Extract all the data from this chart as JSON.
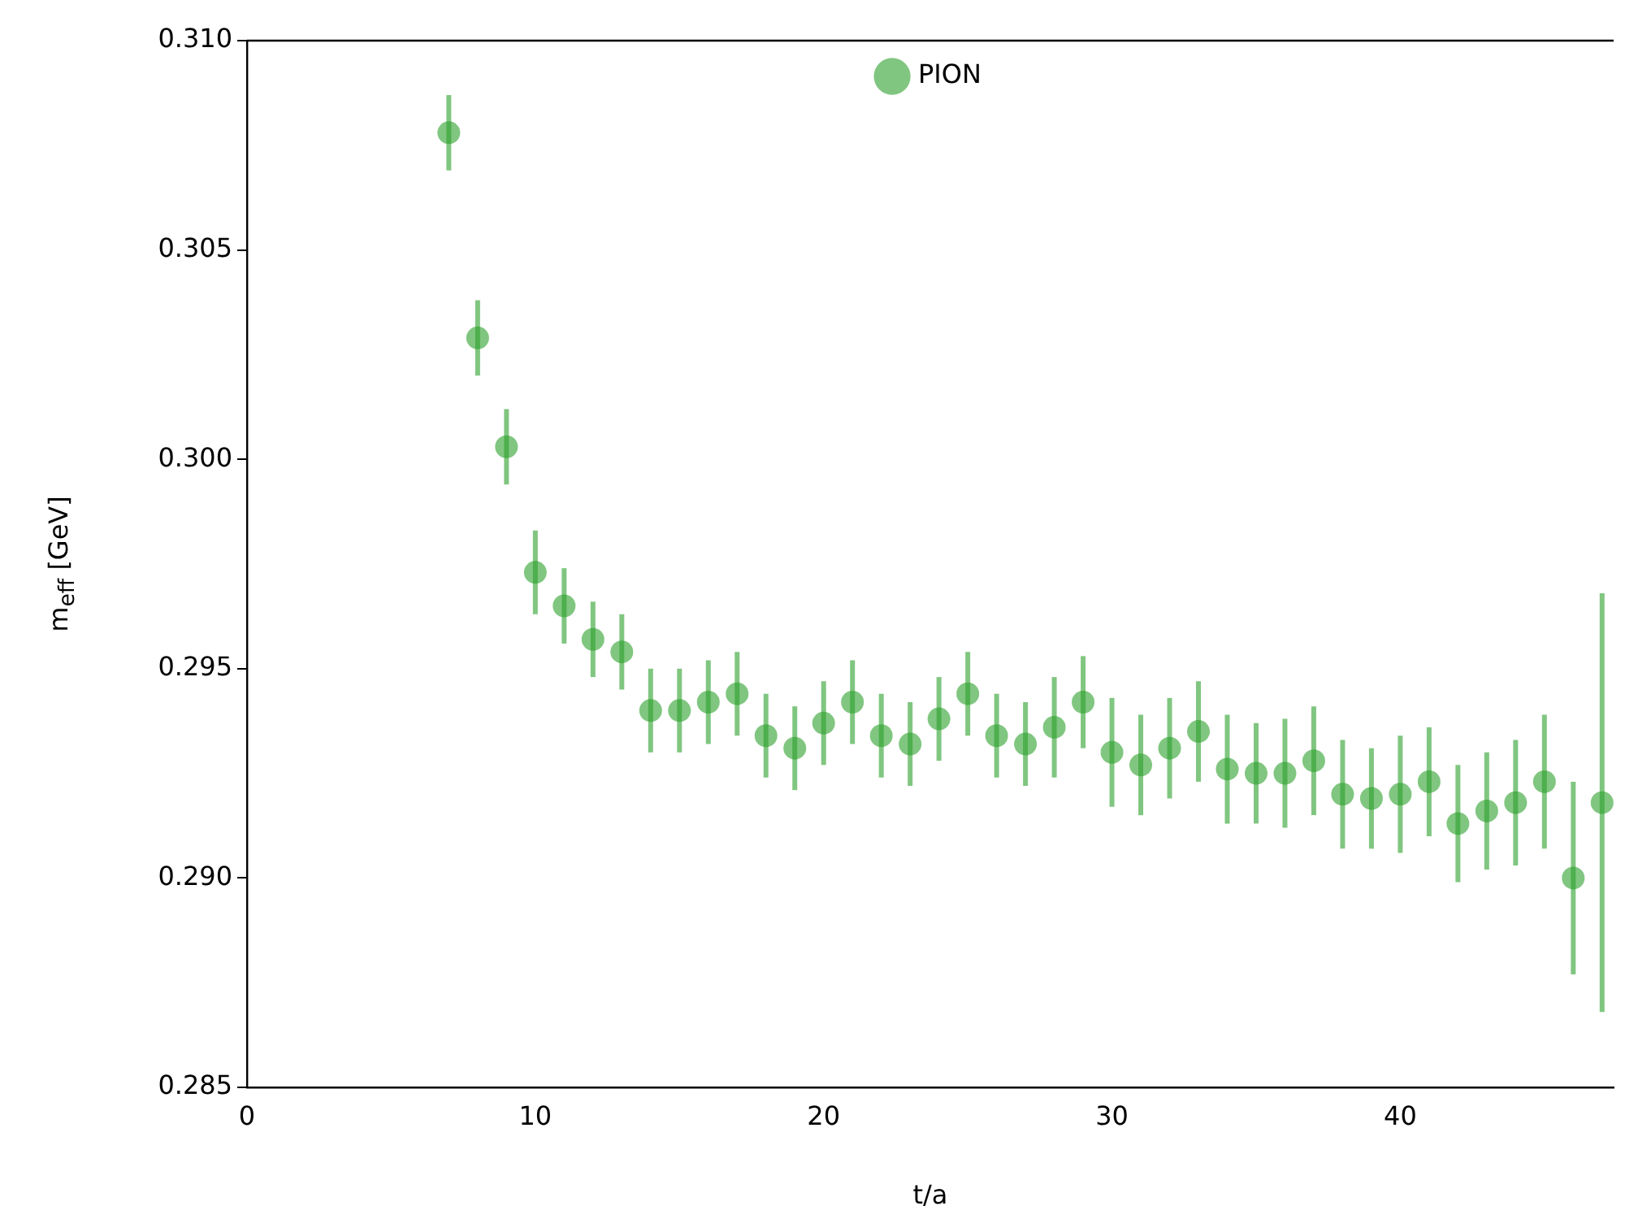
{
  "chart_data": {
    "type": "scatter",
    "xlabel": "t/a",
    "ylabel": "m$_{eff}$ [GeV]",
    "x": [
      7,
      8,
      9,
      10,
      11,
      12,
      13,
      14,
      15,
      16,
      17,
      18,
      19,
      20,
      21,
      22,
      23,
      24,
      25,
      26,
      27,
      28,
      29,
      30,
      31,
      32,
      33,
      34,
      35,
      36,
      37,
      38,
      39,
      40,
      41,
      42,
      43,
      44,
      45,
      46,
      47
    ],
    "series": [
      {
        "name": "PION",
        "color": "#2ca02c",
        "values": [
          0.3078,
          0.3029,
          0.3003,
          0.2973,
          0.2965,
          0.2957,
          0.2954,
          0.294,
          0.294,
          0.2942,
          0.2944,
          0.2934,
          0.2931,
          0.2937,
          0.2942,
          0.2934,
          0.2932,
          0.2938,
          0.2944,
          0.2934,
          0.2932,
          0.2936,
          0.2942,
          0.293,
          0.2927,
          0.2931,
          0.2935,
          0.2926,
          0.2925,
          0.2925,
          0.2928,
          0.292,
          0.2919,
          0.292,
          0.2923,
          0.2913,
          0.2916,
          0.2918,
          0.2923,
          0.29,
          0.2918
        ],
        "errors": [
          0.0009,
          0.0009,
          0.0009,
          0.001,
          0.0009,
          0.0009,
          0.0009,
          0.001,
          0.001,
          0.001,
          0.001,
          0.001,
          0.001,
          0.001,
          0.001,
          0.001,
          0.001,
          0.001,
          0.001,
          0.001,
          0.001,
          0.0012,
          0.0011,
          0.0013,
          0.0012,
          0.0012,
          0.0012,
          0.0013,
          0.0012,
          0.0013,
          0.0013,
          0.0013,
          0.0012,
          0.0014,
          0.0013,
          0.0014,
          0.0014,
          0.0015,
          0.0016,
          0.0023,
          0.005
        ]
      }
    ],
    "xlim": [
      0,
      47.4
    ],
    "xticks": [
      0,
      10,
      20,
      30,
      40
    ],
    "ylim": [
      0.285,
      0.31
    ],
    "yticks": [
      {
        "value": 0.285,
        "label": "0.285"
      },
      {
        "value": 0.29,
        "label": "0.290"
      },
      {
        "value": 0.295,
        "label": "0.295"
      },
      {
        "value": 0.3,
        "label": "0.300"
      },
      {
        "value": 0.305,
        "label": "0.305"
      },
      {
        "value": 0.31,
        "label": "0.310"
      }
    ],
    "legend": "top",
    "marker": "circle",
    "grid": false
  }
}
